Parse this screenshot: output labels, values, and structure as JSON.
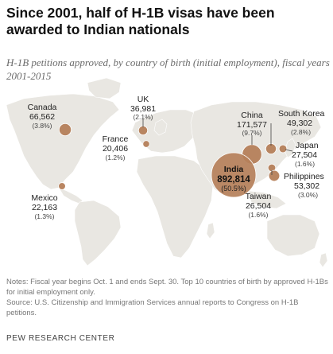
{
  "header": {
    "title": "Since 2001, half of H-1B visas have been awarded to Indian nationals",
    "subtitle": "H-1B petitions approved, by country of birth (initial employment), fiscal years 2001-2015"
  },
  "colors": {
    "land": "#e9e7e2",
    "country_border": "#ffffff",
    "bubble": "#b5805a",
    "bubble_stroke": "#ffffff"
  },
  "chart_data": {
    "type": "bubble-map",
    "countries": [
      {
        "name": "India",
        "value": 892814,
        "value_label": "892,814",
        "share_label": "(50.5%)"
      },
      {
        "name": "China",
        "value": 171577,
        "value_label": "171,577",
        "share_label": "(9.7%)"
      },
      {
        "name": "Canada",
        "value": 66562,
        "value_label": "66,562",
        "share_label": "(3.8%)"
      },
      {
        "name": "Philippines",
        "value": 53302,
        "value_label": "53,302",
        "share_label": "(3.0%)"
      },
      {
        "name": "South Korea",
        "value": 49302,
        "value_label": "49,302",
        "share_label": "(2.8%)"
      },
      {
        "name": "UK",
        "value": 36981,
        "value_label": "36,981",
        "share_label": "(2.1%)"
      },
      {
        "name": "Japan",
        "value": 27504,
        "value_label": "27,504",
        "share_label": "(1.6%)"
      },
      {
        "name": "Taiwan",
        "value": 26504,
        "value_label": "26,504",
        "share_label": "(1.6%)"
      },
      {
        "name": "Mexico",
        "value": 22163,
        "value_label": "22,163",
        "share_label": "(1.3%)"
      },
      {
        "name": "France",
        "value": 20406,
        "value_label": "20,406",
        "share_label": "(1.2%)"
      }
    ]
  },
  "footer": {
    "notes": "Notes: Fiscal year begins Oct. 1 and ends Sept. 30. Top 10 countries of birth by approved H-1Bs for initial employment only.",
    "source": "Source: U.S. Citizenship and Immigration Services annual reports to Congress on H-1B petitions.",
    "brand": "PEW RESEARCH CENTER"
  }
}
